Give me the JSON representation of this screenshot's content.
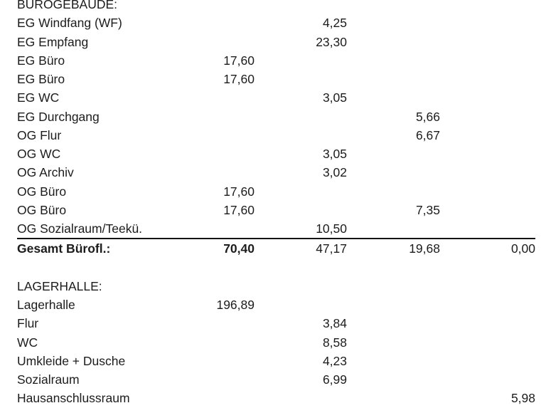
{
  "colors": {
    "background": "#ffffff",
    "text": "#1c1c1c",
    "rule": "#121212"
  },
  "table": {
    "rows": [
      {
        "style": "section",
        "label": "BÜROGEBÄUDE:",
        "values": [
          "",
          "",
          "",
          ""
        ]
      },
      {
        "style": "item",
        "label": "EG Windfang (WF)",
        "values": [
          "",
          "4,25",
          "",
          ""
        ]
      },
      {
        "style": "item",
        "label": "EG Empfang",
        "values": [
          "",
          "23,30",
          "",
          ""
        ]
      },
      {
        "style": "item",
        "label": "EG Büro",
        "values": [
          "17,60",
          "",
          "",
          ""
        ]
      },
      {
        "style": "item",
        "label": "EG Büro",
        "values": [
          "17,60",
          "",
          "",
          ""
        ]
      },
      {
        "style": "item",
        "label": "EG WC",
        "values": [
          "",
          "3,05",
          "",
          ""
        ]
      },
      {
        "style": "item",
        "label": "EG Durchgang",
        "values": [
          "",
          "",
          "5,66",
          ""
        ]
      },
      {
        "style": "item",
        "label": "OG Flur",
        "values": [
          "",
          "",
          "6,67",
          ""
        ]
      },
      {
        "style": "item",
        "label": "OG WC",
        "values": [
          "",
          "3,05",
          "",
          ""
        ]
      },
      {
        "style": "item",
        "label": "OG Archiv",
        "values": [
          "",
          "3,02",
          "",
          ""
        ]
      },
      {
        "style": "item",
        "label": "OG Büro",
        "values": [
          "17,60",
          "",
          "",
          ""
        ]
      },
      {
        "style": "item",
        "label": "OG Büro",
        "values": [
          "17,60",
          "",
          "7,35",
          ""
        ]
      },
      {
        "style": "item",
        "label": "OG Sozialraum/Teekü.",
        "values": [
          "",
          "10,50",
          "",
          ""
        ]
      },
      {
        "style": "total",
        "label": "Gesamt Bürofl.:",
        "values": [
          "70,40",
          "47,17",
          "19,68",
          "0,00"
        ]
      },
      {
        "style": "blank",
        "label": "",
        "values": [
          "",
          "",
          "",
          ""
        ]
      },
      {
        "style": "section",
        "label": "LAGERHALLE:",
        "values": [
          "",
          "",
          "",
          ""
        ]
      },
      {
        "style": "item",
        "label": "Lagerhalle",
        "values": [
          "196,89",
          "",
          "",
          ""
        ]
      },
      {
        "style": "item",
        "label": "Flur",
        "values": [
          "",
          "3,84",
          "",
          ""
        ]
      },
      {
        "style": "item",
        "label": "WC",
        "values": [
          "",
          "8,58",
          "",
          ""
        ]
      },
      {
        "style": "item",
        "label": "Umkleide + Dusche",
        "values": [
          "",
          "4,23",
          "",
          ""
        ]
      },
      {
        "style": "item",
        "label": "Sozialraum",
        "values": [
          "",
          "6,99",
          "",
          ""
        ]
      },
      {
        "style": "item",
        "label": "Hausanschlussraum",
        "values": [
          "",
          "",
          "",
          "5,98"
        ]
      }
    ]
  }
}
